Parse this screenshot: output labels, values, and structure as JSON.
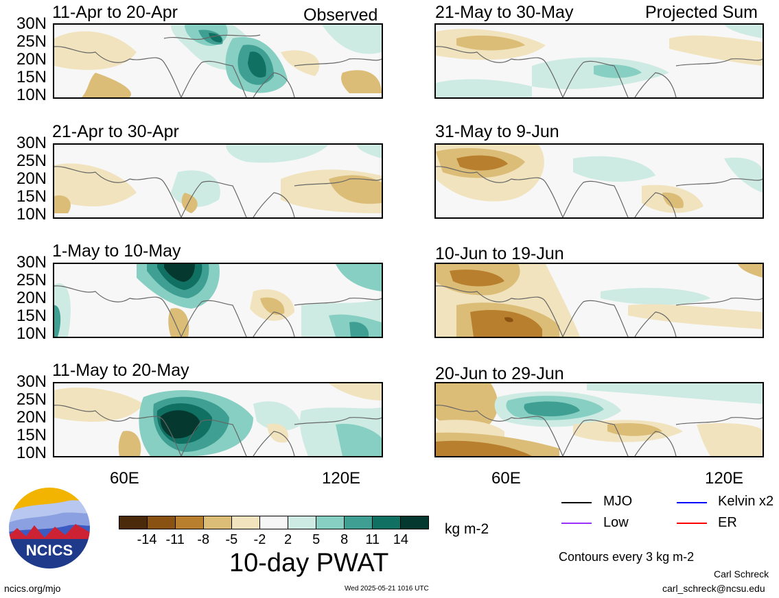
{
  "headers": {
    "left": "Observed",
    "right": "Projected Sum"
  },
  "panels": [
    {
      "title": "11-Apr to 20-Apr"
    },
    {
      "title": "21-May to 30-May"
    },
    {
      "title": "21-Apr to 30-Apr"
    },
    {
      "title": "31-May to 9-Jun"
    },
    {
      "title": "1-May to 10-May"
    },
    {
      "title": "10-Jun to 19-Jun"
    },
    {
      "title": "11-May to 20-May"
    },
    {
      "title": "20-Jun to 29-Jun"
    }
  ],
  "axes": {
    "y_ticks": [
      "30N",
      "25N",
      "20N",
      "15N",
      "10N"
    ],
    "x_ticks": [
      "60E",
      "120E"
    ]
  },
  "colorbar": {
    "title": "10-day PWAT",
    "units": "kg m-2",
    "ticks": [
      "-14",
      "-11",
      "-8",
      "-5",
      "-2",
      "2",
      "5",
      "8",
      "11",
      "14"
    ],
    "colors": [
      "#4a2a0a",
      "#8a5212",
      "#b8802e",
      "#dcbd78",
      "#f1e3bd",
      "#f6f6f6",
      "#cdebe2",
      "#86cfc2",
      "#3f9f93",
      "#107062",
      "#05382f"
    ]
  },
  "legend": {
    "items": [
      {
        "label": "MJO",
        "color": "#000000"
      },
      {
        "label": "Kelvin x2",
        "color": "#0000ff"
      },
      {
        "label": "Low",
        "color": "#9b30ff"
      },
      {
        "label": "ER",
        "color": "#ff0000"
      }
    ],
    "contours_note": "Contours every 3 kg m-2"
  },
  "footer": {
    "url": "ncics.org/mjo",
    "timestamp": "Wed 2025-05-21 1016 UTC",
    "author": "Carl Schreck",
    "email": "carl_schreck@ncsu.edu",
    "logo_text": "NCICS"
  }
}
